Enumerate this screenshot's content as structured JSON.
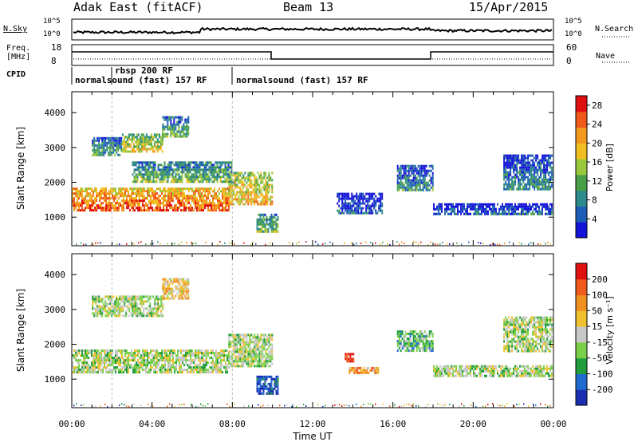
{
  "header": {
    "radar": "Adak East (fitACF)",
    "beam": "Beam 13",
    "date": "15/Apr/2015"
  },
  "noise_panel": {
    "left_label": "N.Sky",
    "right_label": "N.Search",
    "left_ticks": [
      "10^5",
      "10^0"
    ],
    "right_ticks": [
      "10^5",
      "10^0"
    ]
  },
  "freq_panel": {
    "left_label_1": "Freq.",
    "left_label_2": "[MHz]",
    "right_label": "Nave",
    "left_ticks": [
      "18",
      "8"
    ],
    "right_ticks": [
      "60",
      "0"
    ]
  },
  "cpid_panel": {
    "label": "CPID",
    "modes": [
      {
        "text": "normalsound (fast) 157 RF",
        "start_h": 0.0
      },
      {
        "text": "rbsp 200 RF",
        "start_h": 2.0
      },
      {
        "text": "normalsound (fast) 157 RF",
        "start_h": 8.0
      }
    ]
  },
  "chart_data": [
    {
      "type": "heatmap",
      "name": "power",
      "ylabel": "Slant Range [km]",
      "yticks": [
        "1000",
        "2000",
        "3000",
        "4000"
      ],
      "ylim": [
        180,
        4600
      ],
      "xlim_h": [
        0,
        24
      ],
      "colorbar": {
        "label": "Power [dB]",
        "ticks": [
          "4",
          "8",
          "12",
          "16",
          "20",
          "24",
          "28"
        ],
        "range": [
          0,
          30
        ],
        "colors": [
          "#1414d8",
          "#1d5cb8",
          "#2e8b8b",
          "#4aa04a",
          "#9ac83c",
          "#f0c020",
          "#f39a1e",
          "#ef5a1a",
          "#e01010"
        ]
      },
      "regions": [
        {
          "t0": 0.0,
          "t1": 7.8,
          "r0": 1200,
          "r1": 1850,
          "level": 0.75
        },
        {
          "t0": 7.8,
          "t1": 10.0,
          "r0": 1400,
          "r1": 2300,
          "level": 0.55
        },
        {
          "t0": 1.0,
          "t1": 2.5,
          "r0": 2800,
          "r1": 3300,
          "level": 0.25
        },
        {
          "t0": 2.5,
          "t1": 4.5,
          "r0": 2900,
          "r1": 3400,
          "level": 0.5
        },
        {
          "t0": 4.5,
          "t1": 5.8,
          "r0": 3300,
          "r1": 3900,
          "level": 0.3
        },
        {
          "t0": 3.0,
          "t1": 8.0,
          "r0": 2000,
          "r1": 2600,
          "level": 0.35
        },
        {
          "t0": 9.2,
          "t1": 10.3,
          "r0": 600,
          "r1": 1100,
          "level": 0.35
        },
        {
          "t0": 13.2,
          "t1": 15.5,
          "r0": 1100,
          "r1": 1700,
          "level": 0.1
        },
        {
          "t0": 16.2,
          "t1": 18.0,
          "r0": 1800,
          "r1": 2500,
          "level": 0.2
        },
        {
          "t0": 18.0,
          "t1": 23.9,
          "r0": 1100,
          "r1": 1400,
          "level": 0.1
        },
        {
          "t0": 21.5,
          "t1": 23.9,
          "r0": 1800,
          "r1": 2800,
          "level": 0.2
        }
      ]
    },
    {
      "type": "heatmap",
      "name": "velocity",
      "ylabel": "Slant Range [km]",
      "xlabel": "Time UT",
      "yticks": [
        "1000",
        "2000",
        "3000",
        "4000"
      ],
      "xticks": [
        "00:00",
        "04:00",
        "08:00",
        "12:00",
        "16:00",
        "20:00",
        "00:00"
      ],
      "ylim": [
        180,
        4600
      ],
      "xlim_h": [
        0,
        24
      ],
      "colorbar": {
        "label": "Velocity [m s⁻¹]",
        "ticks": [
          "200",
          "100",
          "50",
          "15",
          "-15",
          "-50",
          "-100",
          "-200"
        ],
        "colors": [
          "#1a2fb0",
          "#1f6bd0",
          "#1f9d3a",
          "#7bd04a",
          "#c8c8c8",
          "#f0c030",
          "#f09020",
          "#f05a1a",
          "#e01010"
        ]
      },
      "regions": [
        {
          "t0": 0.0,
          "t1": 7.8,
          "r0": 1200,
          "r1": 1850,
          "level": 0.45
        },
        {
          "t0": 7.8,
          "t1": 10.0,
          "r0": 1400,
          "r1": 2300,
          "level": 0.45
        },
        {
          "t0": 1.0,
          "t1": 4.5,
          "r0": 2800,
          "r1": 3400,
          "level": 0.45
        },
        {
          "t0": 4.5,
          "t1": 5.8,
          "r0": 3300,
          "r1": 3900,
          "level": 0.6
        },
        {
          "t0": 9.2,
          "t1": 10.3,
          "r0": 600,
          "r1": 1100,
          "level": 0.1
        },
        {
          "t0": 13.6,
          "t1": 14.0,
          "r0": 1500,
          "r1": 1750,
          "level": 0.95
        },
        {
          "t0": 13.8,
          "t1": 15.3,
          "r0": 1150,
          "r1": 1350,
          "level": 0.7
        },
        {
          "t0": 16.2,
          "t1": 18.0,
          "r0": 1800,
          "r1": 2400,
          "level": 0.35
        },
        {
          "t0": 18.0,
          "t1": 23.9,
          "r0": 1100,
          "r1": 1400,
          "level": 0.45
        },
        {
          "t0": 21.5,
          "t1": 23.9,
          "r0": 1800,
          "r1": 2800,
          "level": 0.45
        }
      ]
    }
  ]
}
